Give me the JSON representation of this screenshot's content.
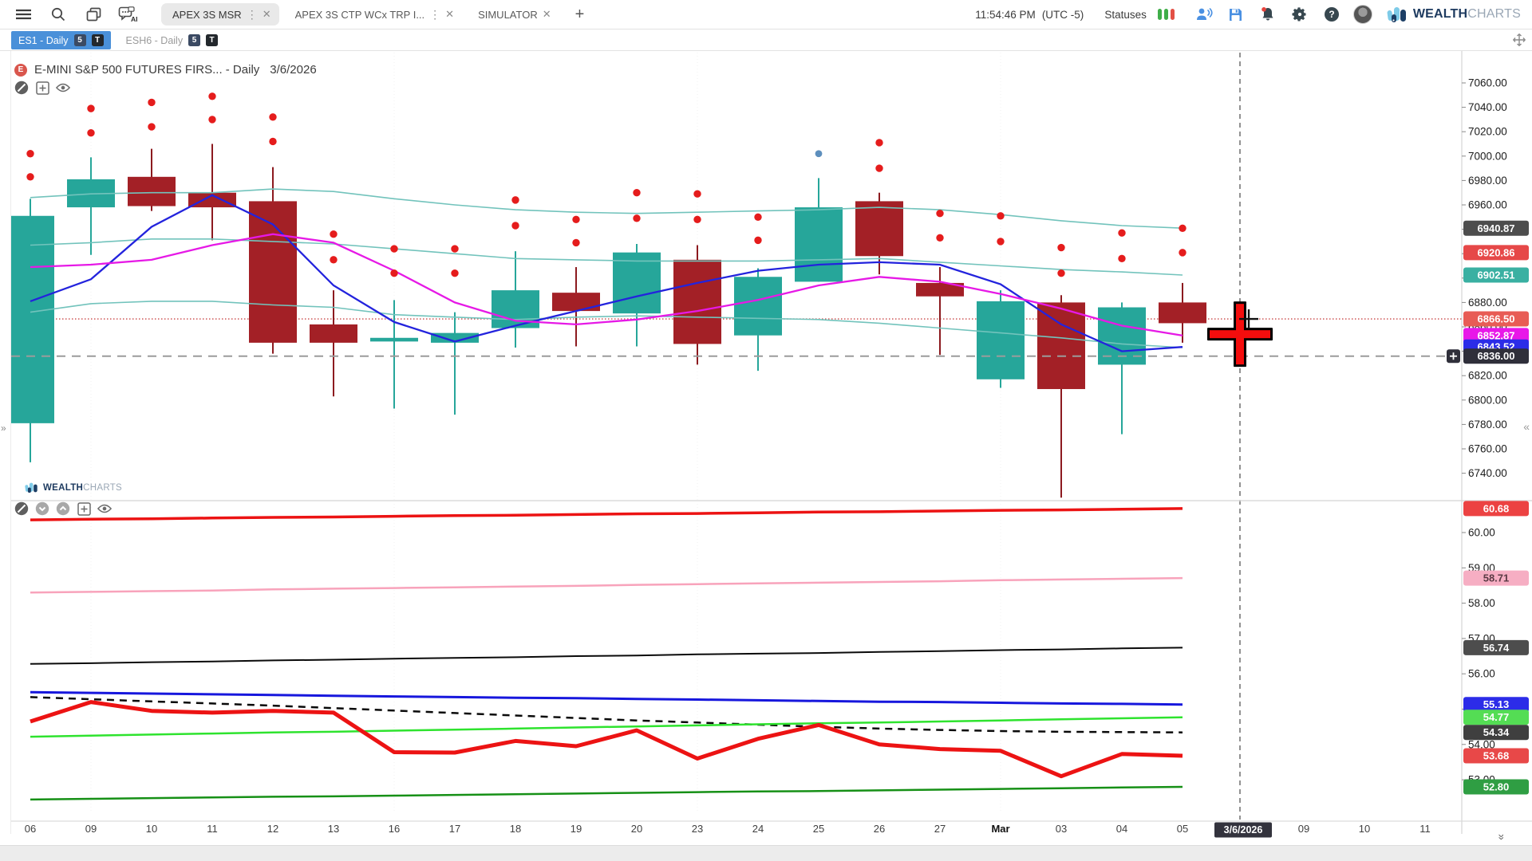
{
  "top_bar": {
    "time": "11:54:46 PM",
    "timezone": "(UTC -5)",
    "statuses_label": "Statuses",
    "status_colors": [
      "#3fae49",
      "#3fae49",
      "#e35045"
    ],
    "workspace_tabs": [
      {
        "label": "APEX 3S MSR",
        "active": true
      },
      {
        "label": "APEX 3S CTP WCx TRP I...",
        "active": false
      },
      {
        "label": "SIMULATOR",
        "active": false
      }
    ],
    "brand_bold": "WEALTH",
    "brand_light": "CHARTS"
  },
  "chart_tabs": [
    {
      "label": "ES1 - Daily",
      "badge_s": "5",
      "badge_t": "T",
      "active": true
    },
    {
      "label": "ESH6 - Daily",
      "badge_s": "5",
      "badge_t": "T",
      "active": false
    }
  ],
  "chart_header": {
    "symbol_title": "E-MINI S&P 500 FUTURES FIRS... - Daily",
    "date": "3/6/2026"
  },
  "watermark": {
    "bold": "WEALTH",
    "light": "CHARTS"
  },
  "chart_data": {
    "type": "candlestick",
    "title": "E-MINI S&P 500 FUTURES FIRS... - Daily 3/6/2026",
    "x_labels": [
      "06",
      "09",
      "10",
      "11",
      "12",
      "13",
      "16",
      "17",
      "18",
      "19",
      "20",
      "23",
      "24",
      "25",
      "26",
      "27",
      "Mar",
      "03",
      "04",
      "05"
    ],
    "bold_x_label": "Mar",
    "x_labels_future": [
      "3/6/2026",
      "09",
      "10",
      "11"
    ],
    "selected_date": "3/6/2026",
    "price_axis": {
      "label_max": 7060,
      "label_min": 6740,
      "label_step": 20,
      "range_top": 7077,
      "range_bottom": 6712
    },
    "candles": {
      "up_color": "#26a69a",
      "down_color": "#a32026",
      "down_wick_color": "#8c1a1f",
      "ohlc": [
        [
          6781,
          6965,
          6749,
          6951
        ],
        [
          6958,
          6999,
          6919,
          6981
        ],
        [
          6983,
          7006,
          6955,
          6959
        ],
        [
          6970,
          7010,
          6931,
          6958
        ],
        [
          6963,
          6991,
          6838,
          6847
        ],
        [
          6862,
          6890,
          6803,
          6847
        ],
        [
          6848,
          6882,
          6793,
          6851
        ],
        [
          6847,
          6872,
          6788,
          6855
        ],
        [
          6859,
          6922,
          6843,
          6890
        ],
        [
          6888,
          6909,
          6844,
          6873
        ],
        [
          6871,
          6928,
          6844,
          6921
        ],
        [
          6915,
          6927,
          6829,
          6846
        ],
        [
          6853,
          6908,
          6824,
          6901
        ],
        [
          6897,
          6982,
          6897,
          6958
        ],
        [
          6963,
          6970,
          6903,
          6918
        ],
        [
          6896,
          6909,
          6837,
          6885
        ],
        [
          6817,
          6890,
          6810,
          6881
        ],
        [
          6880,
          6886,
          6720,
          6809
        ],
        [
          6829,
          6880,
          6772,
          6876
        ],
        [
          6880,
          6896,
          6847,
          6863
        ]
      ]
    },
    "signal_dots": {
      "color": "#e51c1c",
      "pairs": [
        [
          7002,
          6983
        ],
        [
          7039,
          7019
        ],
        [
          7044,
          7024
        ],
        [
          7049,
          7030
        ],
        [
          7032,
          7012
        ],
        [
          6936,
          6915
        ],
        [
          6924,
          6904
        ],
        [
          6924,
          6904
        ],
        [
          6964,
          6943
        ],
        [
          6948,
          6929
        ],
        [
          6970,
          6949
        ],
        [
          6969,
          6948
        ],
        [
          6950,
          6931
        ],
        null,
        [
          7011,
          6990
        ],
        [
          6953,
          6933
        ],
        [
          6951,
          6930
        ],
        [
          6925,
          6904
        ],
        [
          6937,
          6916
        ],
        [
          6940.87,
          6920.86
        ]
      ]
    },
    "blue_dot": {
      "color": "#5d8fbd",
      "index": 13,
      "price": 7002
    },
    "overlays": [
      {
        "name": "upper_band",
        "color": "#72c3bc",
        "width": 1.6,
        "values": [
          6966,
          6969,
          6970,
          6970,
          6973,
          6971,
          6965,
          6960,
          6956,
          6954,
          6953,
          6954,
          6955,
          6956,
          6958,
          6956,
          6952,
          6947,
          6943,
          6940.9
        ]
      },
      {
        "name": "middle_band",
        "color": "#72c3bc",
        "width": 1.6,
        "values": [
          6927,
          6929,
          6932,
          6932,
          6930,
          6928,
          6924,
          6920,
          6916,
          6915,
          6914,
          6914,
          6914,
          6915,
          6916,
          6913,
          6910,
          6907,
          6905,
          6902.5
        ]
      },
      {
        "name": "lower_band",
        "color": "#72c3bc",
        "width": 1.6,
        "values": [
          6872,
          6879,
          6881,
          6881,
          6878,
          6876,
          6870,
          6868,
          6866,
          6868,
          6869,
          6868,
          6867,
          6866,
          6863,
          6859,
          6855,
          6851,
          6846,
          6843
        ]
      },
      {
        "name": "fast_ma",
        "color": "#2323dd",
        "width": 2.3,
        "values": [
          6881,
          6899,
          6942,
          6968,
          6944,
          6894,
          6864,
          6848,
          6861,
          6873,
          6885,
          6896,
          6906,
          6911,
          6913,
          6911,
          6895,
          6862,
          6840,
          6843.5
        ]
      },
      {
        "name": "slow_ma",
        "color": "#e619e6",
        "width": 2.3,
        "values": [
          6909,
          6911,
          6915,
          6927,
          6936,
          6929,
          6906,
          6880,
          6865,
          6862,
          6866,
          6873,
          6882,
          6894,
          6901,
          6897,
          6887,
          6875,
          6861,
          6852.9
        ]
      }
    ],
    "h_lines": [
      {
        "name": "dotted_level",
        "price": 6866.5,
        "color": "#c94545",
        "style": "dotted"
      },
      {
        "name": "dashed_level",
        "price": 6836.0,
        "color": "#9b9b9b",
        "style": "dashed"
      }
    ],
    "price_badges": [
      {
        "value": "6940.87",
        "num": 6940.87,
        "bg": "#4d4d4d"
      },
      {
        "value": "6920.86",
        "num": 6920.86,
        "bg": "#e64848"
      },
      {
        "value": "6902.51",
        "num": 6902.51,
        "bg": "#3ab0a2"
      },
      {
        "value": "6866.50",
        "num": 6866.5,
        "bg": "#e85c55"
      },
      {
        "value": "6852.87",
        "num": 6852.87,
        "bg": "#e817e8"
      },
      {
        "value": "6843.52",
        "num": 6843.52,
        "bg": "#2c2ce8"
      },
      {
        "value": "6836.00",
        "num": 6836.0,
        "bg": "#2f2f3a",
        "plus_button": true
      }
    ],
    "crosshair": {
      "date": "3/6/2026",
      "price": 6854,
      "pointer_price": 6866.5
    },
    "lower_panel": {
      "value_axis": {
        "labels": [
          60,
          59,
          58,
          57,
          56,
          55,
          54,
          53
        ],
        "range_top": 60.81,
        "range_bottom": 52.05
      },
      "lines": [
        {
          "name": "red_top",
          "color": "#ec1313",
          "width": 3.5,
          "values": [
            60.36,
            60.38,
            60.39,
            60.41,
            60.43,
            60.44,
            60.46,
            60.48,
            60.49,
            60.51,
            60.53,
            60.54,
            60.56,
            60.58,
            60.59,
            60.61,
            60.63,
            60.64,
            60.66,
            60.68
          ]
        },
        {
          "name": "pink",
          "color": "#f8a3bb",
          "width": 2.5,
          "values": [
            58.3,
            58.32,
            58.34,
            58.36,
            58.39,
            58.41,
            58.43,
            58.45,
            58.47,
            58.49,
            58.52,
            58.54,
            58.56,
            58.58,
            58.6,
            58.62,
            58.65,
            58.67,
            58.69,
            58.71
          ]
        },
        {
          "name": "black",
          "color": "#0a0a0a",
          "width": 2,
          "values": [
            56.28,
            56.3,
            56.33,
            56.35,
            56.38,
            56.4,
            56.43,
            56.45,
            56.47,
            56.5,
            56.52,
            56.55,
            56.57,
            56.59,
            56.62,
            56.64,
            56.67,
            56.69,
            56.72,
            56.74
          ]
        },
        {
          "name": "black_dashed",
          "color": "#0a0a0a",
          "width": 2.5,
          "dash": "9,7",
          "values": [
            55.34,
            55.28,
            55.22,
            55.16,
            55.1,
            55.03,
            54.96,
            54.89,
            54.82,
            54.75,
            54.68,
            54.62,
            54.56,
            54.5,
            54.45,
            54.41,
            54.38,
            54.36,
            54.35,
            54.34
          ]
        },
        {
          "name": "blue",
          "color": "#1717dd",
          "width": 3,
          "values": [
            55.48,
            55.46,
            55.44,
            55.42,
            55.4,
            55.38,
            55.36,
            55.34,
            55.32,
            55.31,
            55.29,
            55.27,
            55.25,
            55.23,
            55.21,
            55.2,
            55.18,
            55.16,
            55.15,
            55.13
          ]
        },
        {
          "name": "light_green",
          "color": "#2ee32e",
          "width": 2.5,
          "values": [
            54.22,
            54.25,
            54.28,
            54.31,
            54.34,
            54.36,
            54.39,
            54.42,
            54.45,
            54.48,
            54.51,
            54.54,
            54.57,
            54.6,
            54.62,
            54.65,
            54.68,
            54.71,
            54.74,
            54.77
          ]
        },
        {
          "name": "dark_green",
          "color": "#169016",
          "width": 2.5,
          "values": [
            52.44,
            52.46,
            52.48,
            52.5,
            52.52,
            52.53,
            52.55,
            52.57,
            52.59,
            52.61,
            52.63,
            52.65,
            52.67,
            52.68,
            52.7,
            52.72,
            52.74,
            52.76,
            52.78,
            52.8
          ]
        },
        {
          "name": "red_jagged",
          "color": "#ec1313",
          "width": 5,
          "values": [
            54.65,
            55.2,
            54.95,
            54.9,
            54.95,
            54.9,
            53.78,
            53.77,
            54.1,
            53.95,
            54.4,
            53.6,
            54.16,
            54.55,
            54.0,
            53.87,
            53.82,
            53.1,
            53.73,
            53.68
          ]
        }
      ],
      "value_badges": [
        {
          "value": "60.68",
          "num": 60.68,
          "bg": "#ec4242",
          "fg": "#fff"
        },
        {
          "value": "58.71",
          "num": 58.71,
          "bg": "#f6aec3",
          "fg": "#5a3a44"
        },
        {
          "value": "56.74",
          "num": 56.74,
          "bg": "#4d4d4d",
          "fg": "#fff"
        },
        {
          "value": "55.13",
          "num": 55.13,
          "bg": "#2c2ce8",
          "fg": "#fff"
        },
        {
          "value": "54.77",
          "num": 54.77,
          "bg": "#54dd54",
          "fg": "#fff"
        },
        {
          "value": "54.34",
          "num": 54.34,
          "bg": "#3f3f3f",
          "fg": "#fff"
        },
        {
          "value": "53.68",
          "num": 53.68,
          "bg": "#e84848",
          "fg": "#fff"
        },
        {
          "value": "52.80",
          "num": 52.8,
          "bg": "#2f9e43",
          "fg": "#fff"
        }
      ]
    }
  }
}
